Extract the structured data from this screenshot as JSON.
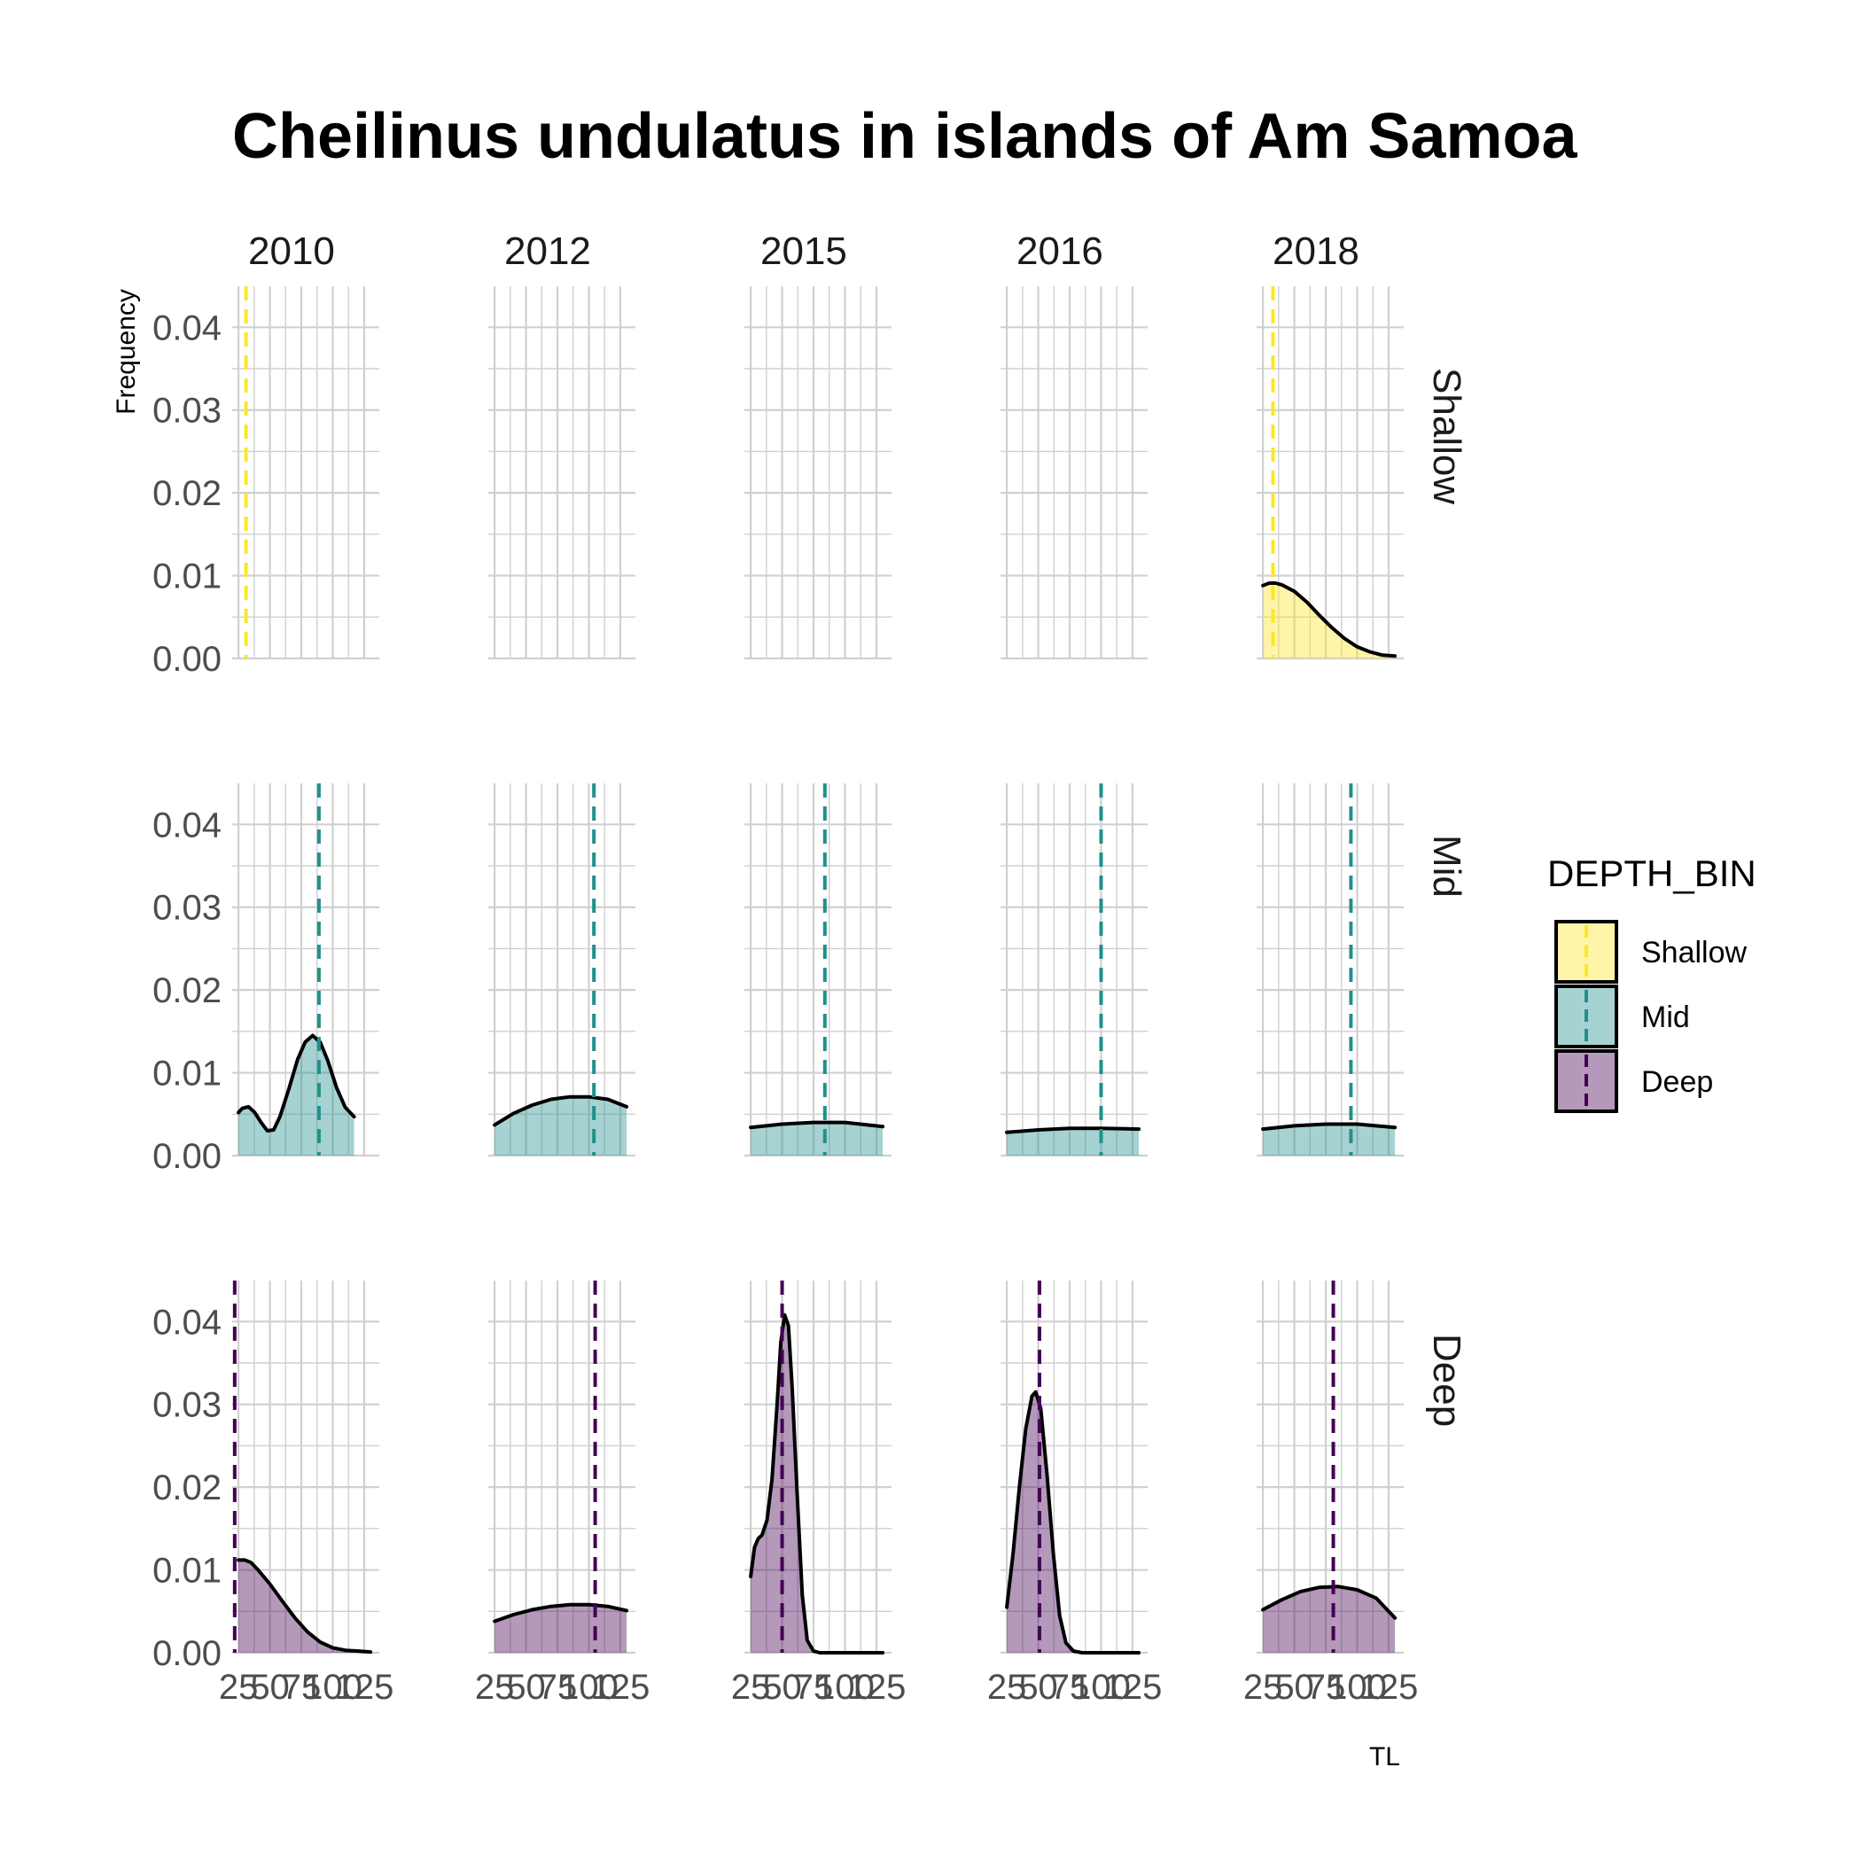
{
  "chart_data": {
    "type": "area",
    "title": "Cheilinus undulatus in islands of Am Samoa",
    "xlabel": "TL",
    "ylabel": "Frequency",
    "columns": [
      "2010",
      "2012",
      "2015",
      "2016",
      "2018"
    ],
    "rows": [
      "Shallow",
      "Mid",
      "Deep"
    ],
    "xlim": [
      20,
      137
    ],
    "ylim": [
      0,
      0.043
    ],
    "x_ticks": [
      25,
      50,
      75,
      100,
      125
    ],
    "y_ticks": [
      0.0,
      0.01,
      0.02,
      0.03,
      0.04
    ],
    "y_tick_labels": [
      "0.00",
      "0.01",
      "0.02",
      "0.03",
      "0.04"
    ],
    "x_tick_labels": [
      "25",
      "50",
      "75",
      "100",
      "125"
    ],
    "grid": true,
    "legend": {
      "title": "DEPTH_BIN",
      "position": "right",
      "entries": [
        "Shallow",
        "Mid",
        "Deep"
      ]
    },
    "colors": {
      "Shallow": "#FDE725",
      "Mid": "#21908C",
      "Deep": "#440154"
    },
    "panels": [
      {
        "row": "Shallow",
        "col": "2010",
        "mean": 31,
        "density": []
      },
      {
        "row": "Shallow",
        "col": "2012",
        "mean": null,
        "density": []
      },
      {
        "row": "Shallow",
        "col": "2015",
        "mean": null,
        "density": []
      },
      {
        "row": "Shallow",
        "col": "2016",
        "mean": null,
        "density": []
      },
      {
        "row": "Shallow",
        "col": "2018",
        "mean": 33,
        "density": [
          [
            25,
            0.0088
          ],
          [
            30,
            0.0091
          ],
          [
            35,
            0.0091
          ],
          [
            40,
            0.0089
          ],
          [
            50,
            0.0081
          ],
          [
            60,
            0.0068
          ],
          [
            70,
            0.0052
          ],
          [
            80,
            0.0037
          ],
          [
            90,
            0.0024
          ],
          [
            100,
            0.0014
          ],
          [
            110,
            0.0008
          ],
          [
            120,
            0.0004
          ],
          [
            130,
            0.0003
          ]
        ]
      },
      {
        "row": "Mid",
        "col": "2010",
        "mean": 89,
        "density": [
          [
            25,
            0.0052
          ],
          [
            28,
            0.0057
          ],
          [
            33,
            0.0059
          ],
          [
            38,
            0.0052
          ],
          [
            43,
            0.004
          ],
          [
            48,
            0.003
          ],
          [
            53,
            0.0031
          ],
          [
            58,
            0.0047
          ],
          [
            65,
            0.008
          ],
          [
            72,
            0.0116
          ],
          [
            78,
            0.0137
          ],
          [
            84,
            0.0145
          ],
          [
            90,
            0.0137
          ],
          [
            96,
            0.0115
          ],
          [
            103,
            0.0082
          ],
          [
            110,
            0.0058
          ],
          [
            117,
            0.0047
          ]
        ]
      },
      {
        "row": "Mid",
        "col": "2012",
        "mean": 104,
        "density": [
          [
            25,
            0.0037
          ],
          [
            40,
            0.0051
          ],
          [
            55,
            0.0061
          ],
          [
            70,
            0.0068
          ],
          [
            85,
            0.0071
          ],
          [
            100,
            0.0071
          ],
          [
            115,
            0.0068
          ],
          [
            130,
            0.0059
          ]
        ]
      },
      {
        "row": "Mid",
        "col": "2015",
        "mean": 84,
        "density": [
          [
            25,
            0.0034
          ],
          [
            50,
            0.0038
          ],
          [
            75,
            0.004
          ],
          [
            100,
            0.004
          ],
          [
            130,
            0.0035
          ]
        ]
      },
      {
        "row": "Mid",
        "col": "2016",
        "mean": 100,
        "density": [
          [
            25,
            0.0028
          ],
          [
            50,
            0.0031
          ],
          [
            75,
            0.0033
          ],
          [
            100,
            0.0033
          ],
          [
            130,
            0.0032
          ]
        ]
      },
      {
        "row": "Mid",
        "col": "2018",
        "mean": 95,
        "density": [
          [
            25,
            0.0032
          ],
          [
            50,
            0.0036
          ],
          [
            75,
            0.0038
          ],
          [
            100,
            0.0038
          ],
          [
            130,
            0.0034
          ]
        ]
      },
      {
        "row": "Deep",
        "col": "2010",
        "mean": 22,
        "density": [
          [
            25,
            0.0112
          ],
          [
            30,
            0.0112
          ],
          [
            35,
            0.0109
          ],
          [
            40,
            0.0101
          ],
          [
            50,
            0.0083
          ],
          [
            60,
            0.0062
          ],
          [
            70,
            0.0042
          ],
          [
            80,
            0.0025
          ],
          [
            90,
            0.0013
          ],
          [
            100,
            0.0006
          ],
          [
            110,
            0.0003
          ],
          [
            120,
            0.0002
          ],
          [
            130,
            0.0001
          ]
        ]
      },
      {
        "row": "Deep",
        "col": "2012",
        "mean": 105,
        "density": [
          [
            25,
            0.0038
          ],
          [
            40,
            0.0046
          ],
          [
            55,
            0.0052
          ],
          [
            70,
            0.0056
          ],
          [
            85,
            0.0058
          ],
          [
            100,
            0.0058
          ],
          [
            115,
            0.0056
          ],
          [
            130,
            0.0051
          ]
        ]
      },
      {
        "row": "Deep",
        "col": "2015",
        "mean": 50,
        "density": [
          [
            25,
            0.0092
          ],
          [
            28,
            0.0127
          ],
          [
            31,
            0.0138
          ],
          [
            34,
            0.0142
          ],
          [
            38,
            0.016
          ],
          [
            42,
            0.021
          ],
          [
            46,
            0.03
          ],
          [
            49,
            0.0375
          ],
          [
            52,
            0.0408
          ],
          [
            55,
            0.0395
          ],
          [
            58,
            0.032
          ],
          [
            62,
            0.019
          ],
          [
            66,
            0.007
          ],
          [
            70,
            0.0015
          ],
          [
            75,
            0.0002
          ],
          [
            80,
            0.0
          ],
          [
            100,
            0.0
          ],
          [
            130,
            0.0
          ]
        ]
      },
      {
        "row": "Deep",
        "col": "2016",
        "mean": 51,
        "density": [
          [
            25,
            0.0055
          ],
          [
            30,
            0.012
          ],
          [
            35,
            0.02
          ],
          [
            40,
            0.027
          ],
          [
            45,
            0.031
          ],
          [
            48,
            0.0315
          ],
          [
            52,
            0.0295
          ],
          [
            57,
            0.0215
          ],
          [
            62,
            0.012
          ],
          [
            67,
            0.0045
          ],
          [
            72,
            0.0012
          ],
          [
            78,
            0.0002
          ],
          [
            85,
            0.0
          ],
          [
            100,
            0.0
          ],
          [
            130,
            0.0
          ]
        ]
      },
      {
        "row": "Deep",
        "col": "2018",
        "mean": 81,
        "density": [
          [
            25,
            0.0052
          ],
          [
            40,
            0.0064
          ],
          [
            55,
            0.0074
          ],
          [
            70,
            0.0079
          ],
          [
            85,
            0.008
          ],
          [
            100,
            0.0076
          ],
          [
            115,
            0.0066
          ],
          [
            130,
            0.0042
          ]
        ]
      }
    ]
  }
}
